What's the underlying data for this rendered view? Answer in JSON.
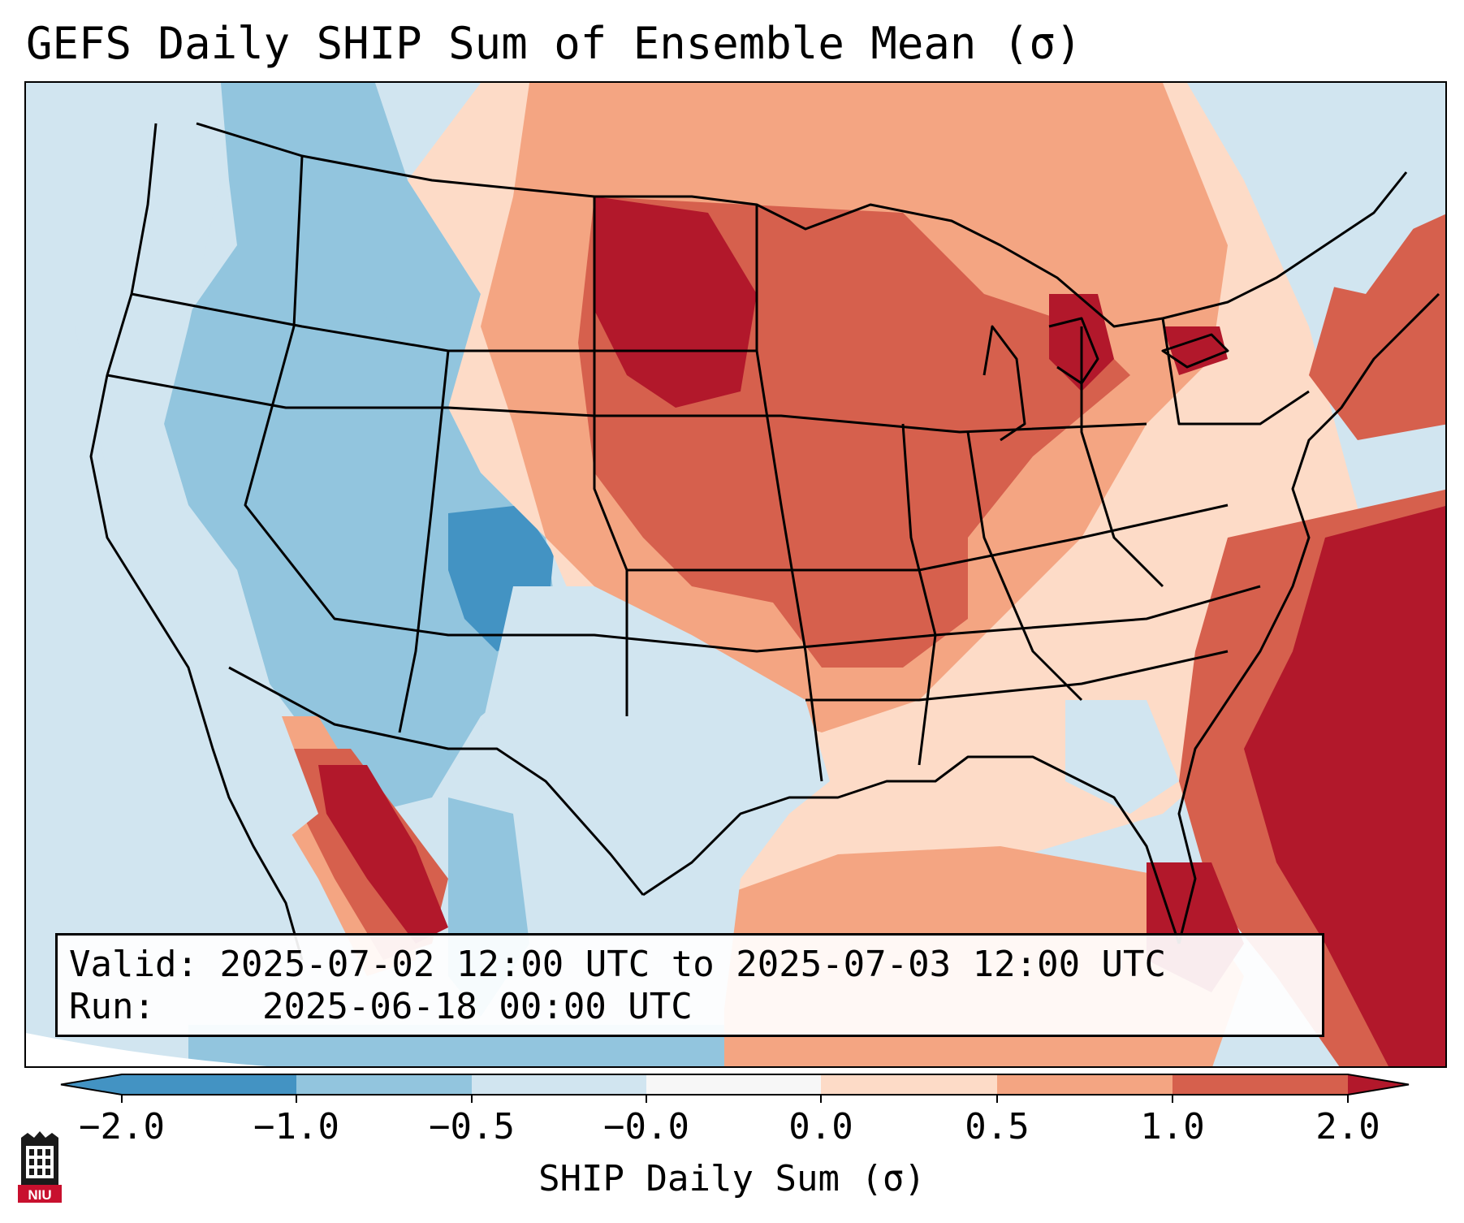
{
  "title": "GEFS Daily SHIP Sum of Ensemble Mean (σ)",
  "info": {
    "valid_label": "Valid:",
    "valid_value": "2025-07-02 12:00 UTC to 2025-07-03 12:00 UTC",
    "run_label": "Run:",
    "run_value": "2025-06-18 00:00 UTC"
  },
  "colorbar": {
    "label": "SHIP Daily Sum (σ)",
    "ticks": [
      "−2.0",
      "−1.0",
      "−0.5",
      "−0.0",
      "0.0",
      "0.5",
      "1.0",
      "2.0"
    ],
    "colors": [
      "#4393c3",
      "#92c5de",
      "#d1e5f0",
      "#f7f7f7",
      "#fddbc7",
      "#f4a582",
      "#d6604d",
      "#b2182b"
    ],
    "extend": "both"
  },
  "logo": {
    "text": "NIU",
    "name": "NIU tower logo"
  }
}
